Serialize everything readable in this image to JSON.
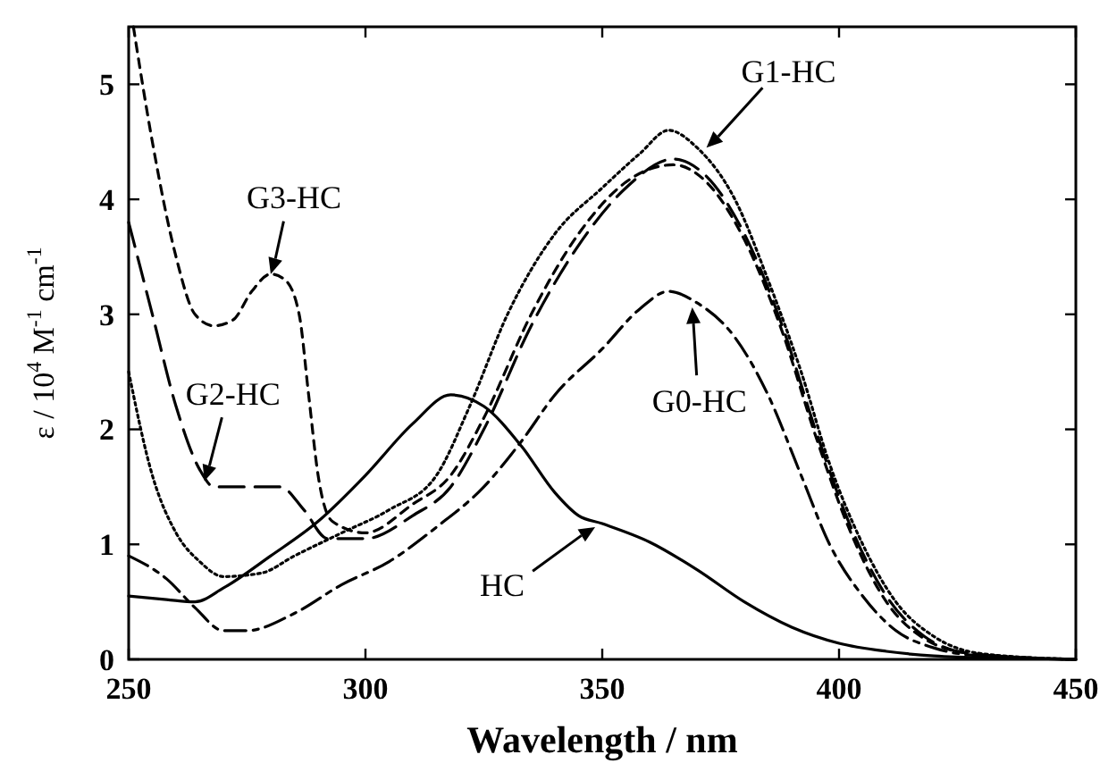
{
  "chart_data": {
    "type": "line",
    "xlabel": "Wavelength / nm",
    "ylabel": "ε / 10$^{4}$ M$^{-1}$ cm$^{-1}$",
    "xlim": [
      250,
      450
    ],
    "ylim": [
      0,
      5.5
    ],
    "xticks": [
      250,
      300,
      350,
      400,
      450
    ],
    "yticks": [
      0,
      1,
      2,
      3,
      4,
      5
    ],
    "grid": false,
    "marker": "none",
    "series": [
      {
        "color": "#000000",
        "line_style": "solid",
        "x": [
          250,
          258,
          264,
          270,
          280,
          290,
          300,
          310,
          318,
          325,
          333,
          340,
          345,
          350,
          360,
          370,
          380,
          390,
          400,
          410,
          420,
          435,
          450
        ],
        "values": [
          0.55,
          0.52,
          0.5,
          0.62,
          0.9,
          1.2,
          1.6,
          2.05,
          2.3,
          2.2,
          1.85,
          1.45,
          1.25,
          1.18,
          1.02,
          0.78,
          0.5,
          0.28,
          0.14,
          0.07,
          0.03,
          0.01,
          0
        ]
      },
      {
        "color": "#000000",
        "line_style": "dashed",
        "x": [
          250,
          258,
          264,
          270,
          275,
          285,
          295,
          305,
          315,
          325,
          333,
          340,
          350,
          358,
          364,
          370,
          378,
          385,
          392,
          398,
          405,
          412,
          420,
          430,
          450
        ],
        "values": [
          0.9,
          0.7,
          0.45,
          0.25,
          0.25,
          0.4,
          0.65,
          0.85,
          1.15,
          1.5,
          1.9,
          2.3,
          2.7,
          3.05,
          3.2,
          3.1,
          2.8,
          2.3,
          1.6,
          1.0,
          0.55,
          0.25,
          0.1,
          0.03,
          0
        ]
      },
      {
        "color": "#000000",
        "line_style": "dotted",
        "x": [
          250,
          255,
          260,
          265,
          270,
          278,
          285,
          295,
          305,
          315,
          322,
          330,
          340,
          350,
          358,
          364,
          370,
          378,
          385,
          392,
          398,
          405,
          412,
          420,
          430,
          450
        ],
        "values": [
          2.5,
          1.6,
          1.1,
          0.85,
          0.72,
          0.75,
          0.9,
          1.1,
          1.3,
          1.6,
          2.2,
          3.0,
          3.7,
          4.1,
          4.4,
          4.6,
          4.45,
          4.0,
          3.3,
          2.5,
          1.7,
          1.0,
          0.5,
          0.2,
          0.05,
          0
        ]
      },
      {
        "color": "#000000",
        "line_style": "dashed",
        "x": [
          250,
          255,
          260,
          265,
          268,
          275,
          282,
          287,
          292,
          300,
          310,
          318,
          325,
          335,
          345,
          355,
          365,
          372,
          380,
          388,
          395,
          402,
          410,
          418,
          428,
          450
        ],
        "values": [
          3.8,
          3.0,
          2.2,
          1.65,
          1.5,
          1.5,
          1.5,
          1.3,
          1.05,
          1.05,
          1.25,
          1.5,
          2.0,
          2.9,
          3.6,
          4.1,
          4.35,
          4.2,
          3.7,
          2.9,
          2.0,
          1.2,
          0.55,
          0.2,
          0.05,
          0
        ]
      },
      {
        "color": "#000000",
        "line_style": "dashed",
        "x": [
          251,
          255,
          260,
          264,
          268,
          272,
          276,
          280,
          283,
          286,
          288,
          290,
          293,
          300,
          310,
          318,
          325,
          335,
          345,
          355,
          365,
          372,
          380,
          388,
          395,
          402,
          410,
          418,
          428,
          450
        ],
        "values": [
          5.5,
          4.5,
          3.5,
          3.0,
          2.9,
          2.95,
          3.2,
          3.35,
          3.3,
          3.0,
          2.3,
          1.6,
          1.2,
          1.1,
          1.35,
          1.6,
          2.1,
          3.0,
          3.7,
          4.15,
          4.3,
          4.15,
          3.65,
          2.85,
          1.95,
          1.15,
          0.5,
          0.18,
          0.05,
          0
        ]
      }
    ],
    "annotations": [
      {
        "text": "G3-HC",
        "x": 280,
        "y": 3.35
      },
      {
        "text": "G2-HC",
        "x": 266,
        "y": 1.55
      },
      {
        "text": "G1-HC",
        "x": 372,
        "y": 4.45
      },
      {
        "text": "G0-HC",
        "x": 369,
        "y": 3.06
      },
      {
        "text": "HC",
        "x": 348.5,
        "y": 1.15
      }
    ]
  }
}
